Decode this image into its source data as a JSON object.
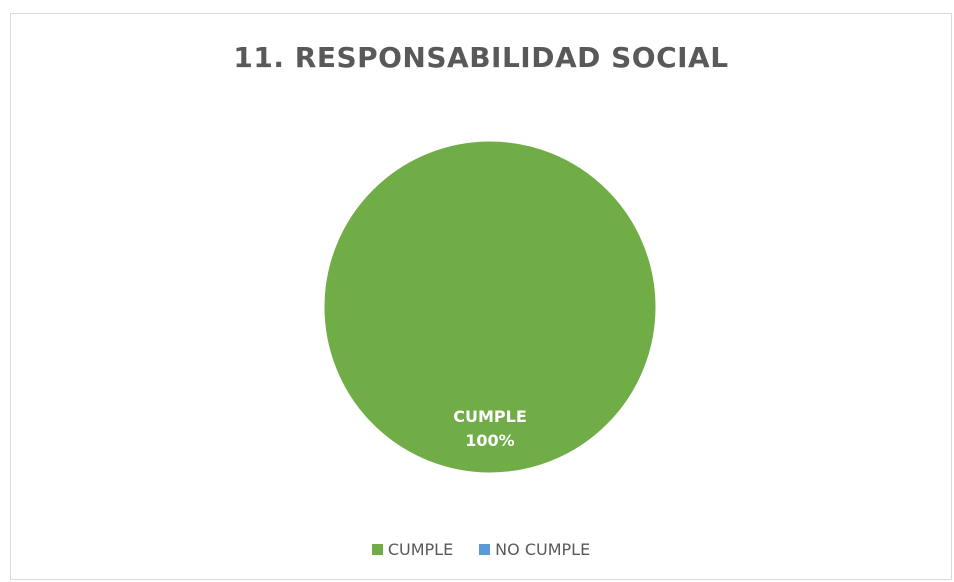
{
  "chart_data": {
    "type": "pie",
    "title": "11. RESPONSABILIDAD SOCIAL",
    "categories": [
      "CUMPLE",
      "NO CUMPLE"
    ],
    "values": [
      100,
      0
    ],
    "data_labels": [
      {
        "category": "CUMPLE",
        "value": "100%"
      }
    ],
    "colors": [
      "#70ad47",
      "#5b9bd5"
    ],
    "legend_position": "bottom",
    "label_color": "#ffffff"
  }
}
